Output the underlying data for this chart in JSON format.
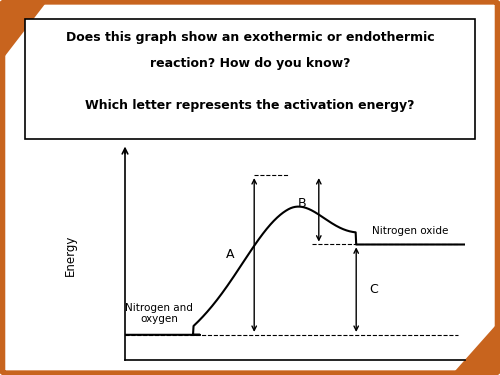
{
  "title_line1": "Does this graph show an exothermic or endothermic",
  "title_line2": "reaction? How do you know?",
  "title_line3": "Which letter represents the activation energy?",
  "ylabel": "Energy",
  "reactant_label": "Nitrogen and\noxygen",
  "product_label": "Nitrogen oxide",
  "label_A": "A",
  "label_B": "B",
  "label_C": "C",
  "reactant_level": 0.12,
  "product_level": 0.55,
  "peak_level": 0.88,
  "background_color": "#ffffff",
  "border_color": "#c8641e",
  "text_color": "#000000"
}
